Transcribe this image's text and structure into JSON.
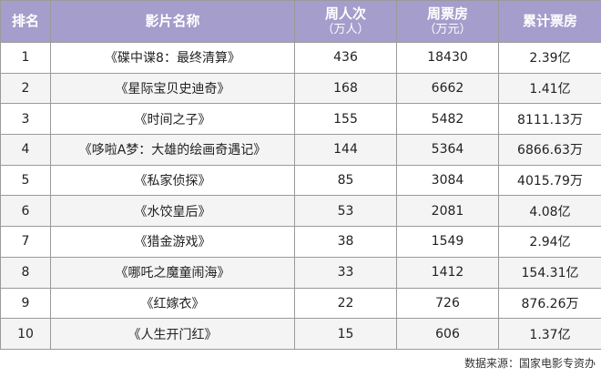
{
  "chart_data": {
    "type": "table",
    "columns": [
      {
        "label": "排名",
        "sub": ""
      },
      {
        "label": "影片名称",
        "sub": ""
      },
      {
        "label": "周人次",
        "sub": "（万人）"
      },
      {
        "label": "周票房",
        "sub": "（万元）"
      },
      {
        "label": "累计票房",
        "sub": ""
      }
    ],
    "rows": [
      [
        "1",
        "《碟中谍8：最终清算》",
        "436",
        "18430",
        "2.39亿"
      ],
      [
        "2",
        "《星际宝贝史迪奇》",
        "168",
        "6662",
        "1.41亿"
      ],
      [
        "3",
        "《时间之子》",
        "155",
        "5482",
        "8111.13万"
      ],
      [
        "4",
        "《哆啦A梦：大雄的绘画奇遇记》",
        "144",
        "5364",
        "6866.63万"
      ],
      [
        "5",
        "《私家侦探》",
        "85",
        "3084",
        "4015.79万"
      ],
      [
        "6",
        "《水饺皇后》",
        "53",
        "2081",
        "4.08亿"
      ],
      [
        "7",
        "《猎金游戏》",
        "38",
        "1549",
        "2.94亿"
      ],
      [
        "8",
        "《哪吒之魔童闹海》",
        "33",
        "1412",
        "154.31亿"
      ],
      [
        "9",
        "《红嫁衣》",
        "22",
        "726",
        "876.26万"
      ],
      [
        "10",
        "《人生开门红》",
        "15",
        "606",
        "1.37亿"
      ]
    ],
    "header_color": "#a59dcb",
    "source": "数据来源：国家电影专资办"
  }
}
